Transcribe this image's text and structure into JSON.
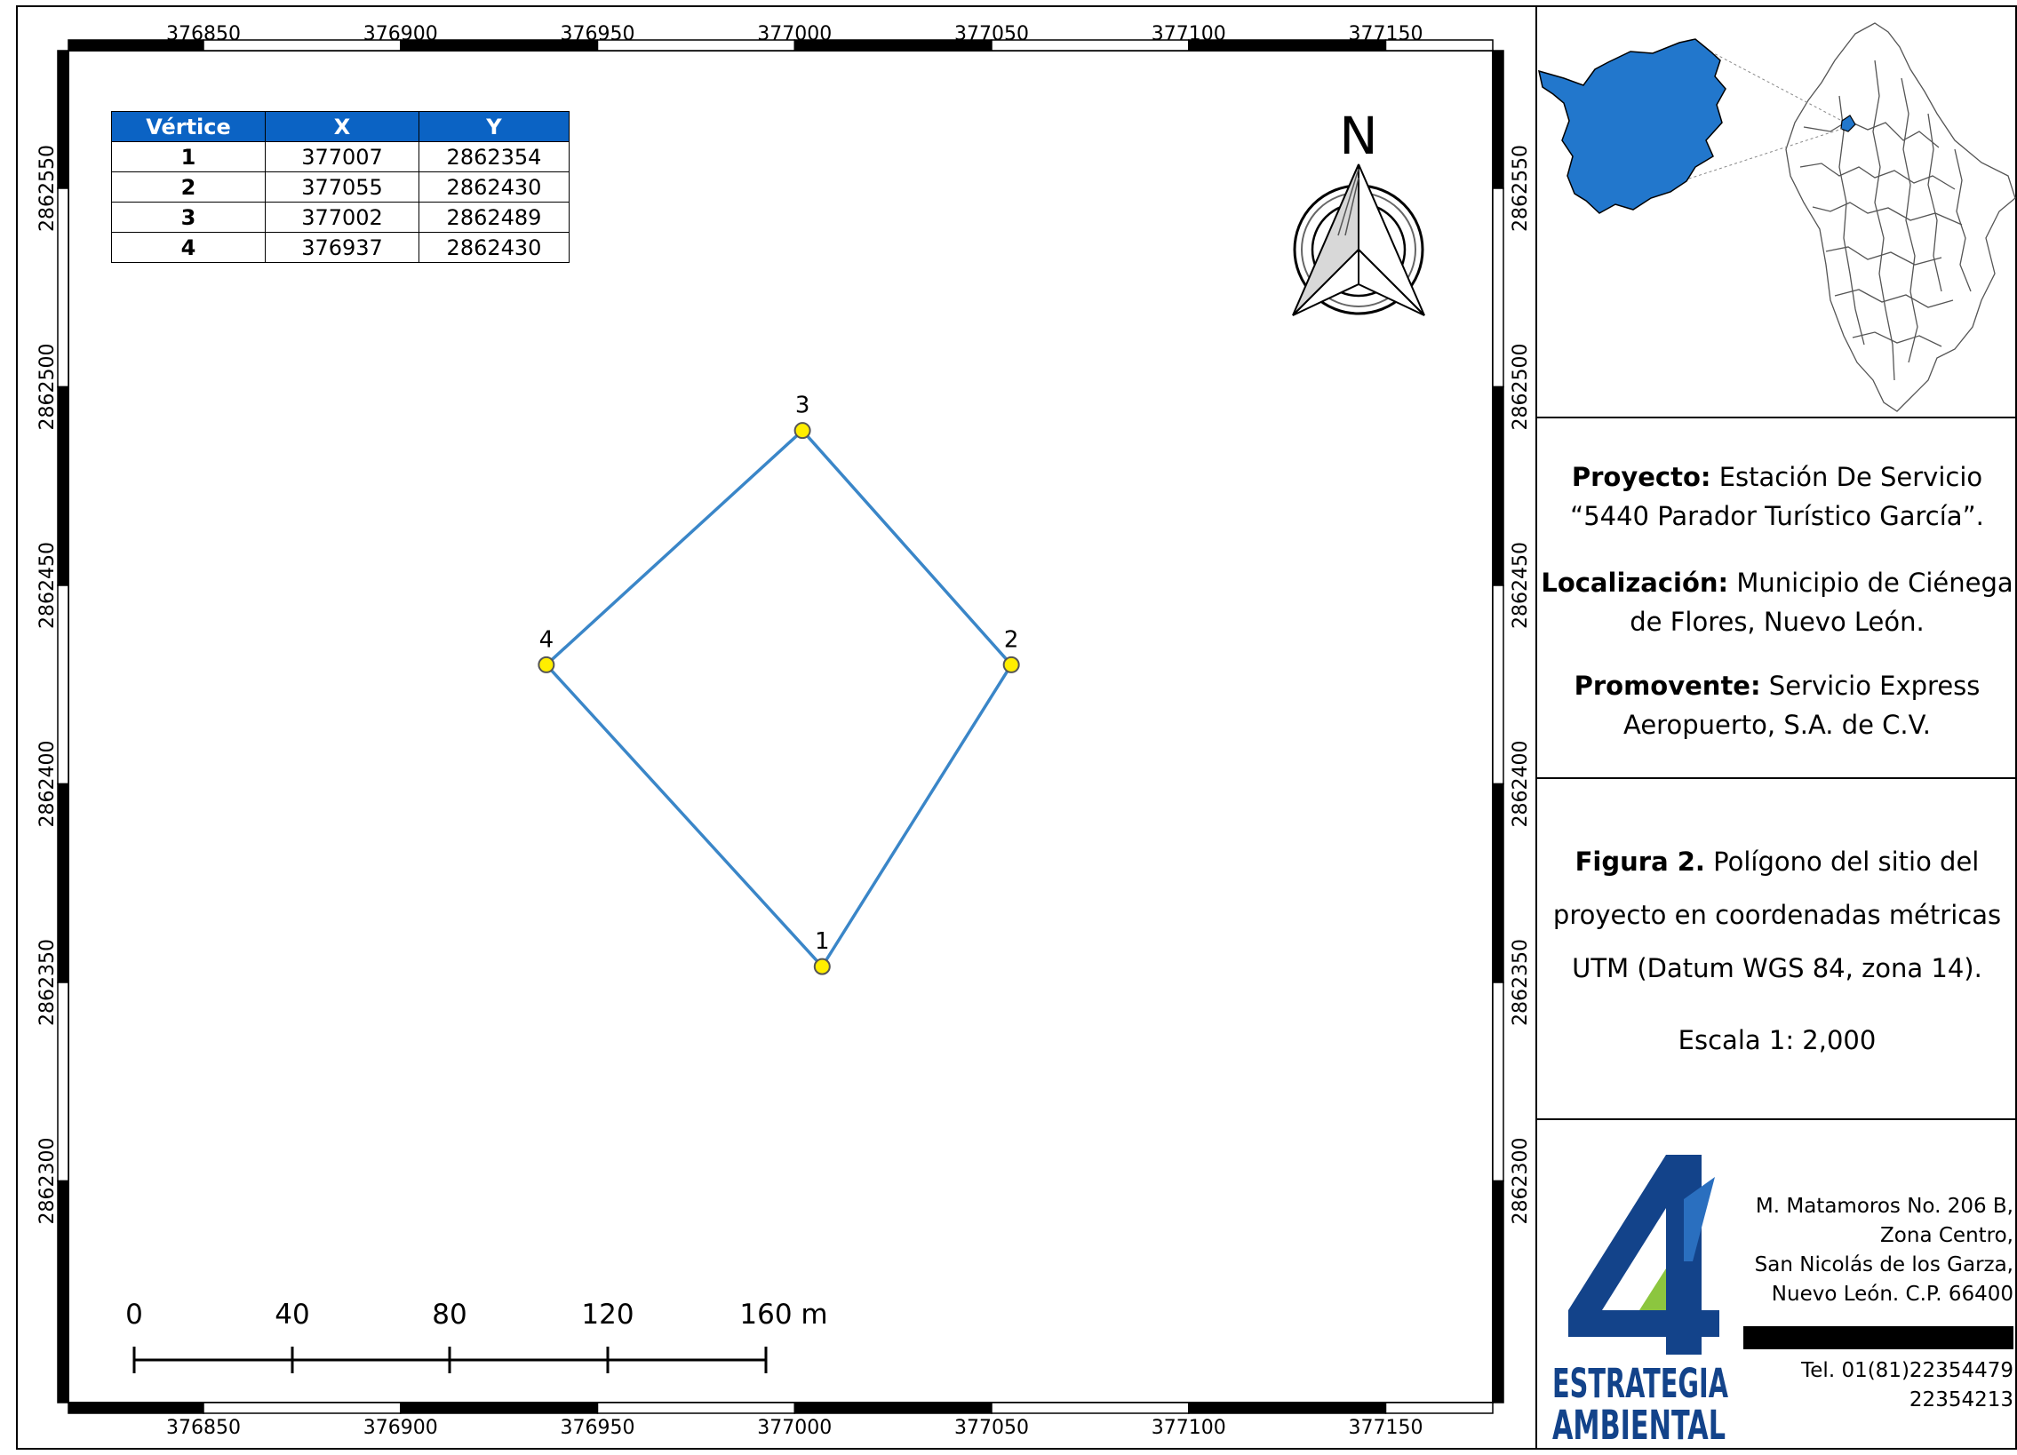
{
  "map": {
    "x_ticks": [
      "376850",
      "376900",
      "376950",
      "377000",
      "377050",
      "377100",
      "377150"
    ],
    "y_ticks": [
      "2862550",
      "2862500",
      "2862450",
      "2862400",
      "2862350",
      "2862300"
    ],
    "north_label": "N",
    "vertices": [
      {
        "id": "1",
        "x": 377007,
        "y": 2862354
      },
      {
        "id": "2",
        "x": 377055,
        "y": 2862430
      },
      {
        "id": "3",
        "x": 377002,
        "y": 2862489
      },
      {
        "id": "4",
        "x": 376937,
        "y": 2862430
      }
    ],
    "polygon_color": "#3a86c8",
    "vertex_color": "#ffee00",
    "scale_bar_labels": [
      "0",
      "40",
      "80",
      "120",
      "160 m"
    ]
  },
  "table": {
    "headers": [
      "Vértice",
      "X",
      "Y"
    ],
    "rows": [
      [
        "1",
        "377007",
        "2862354"
      ],
      [
        "2",
        "377055",
        "2862430"
      ],
      [
        "3",
        "377002",
        "2862489"
      ],
      [
        "4",
        "376937",
        "2862430"
      ]
    ],
    "header_color": "#0b63c4"
  },
  "panel": {
    "locator_color": "#2277cc",
    "proyecto_label": "Proyecto:",
    "proyecto_text_1": "Estación De Servicio",
    "proyecto_text_2": "“5440 Parador Turístico García”.",
    "localizacion_label": "Localización:",
    "localizacion_text_1": "Municipio de Ciénega",
    "localizacion_text_2": "de Flores, Nuevo León.",
    "promovente_label": "Promovente:",
    "promovente_text_1": "Servicio Express",
    "promovente_text_2": "Aeropuerto, S.A. de C.V.",
    "figura_label": "Figura 2.",
    "figura_text_1": "Polígono del sitio del",
    "figura_text_2": "proyecto en coordenadas métricas",
    "figura_text_3": "UTM (Datum WGS 84, zona 14).",
    "escala": "Escala 1: 2,000",
    "logo_line_1": "ESTRATEGIA",
    "logo_line_2": "AMBIENTAL",
    "address_1": "M. Matamoros No. 206 B,",
    "address_2": "Zona Centro,",
    "address_3": "San Nicolás de los Garza,",
    "address_4": "Nuevo León. C.P. 66400",
    "phone_1": "Tel. 01(81)22354479",
    "phone_2": "22354213"
  }
}
